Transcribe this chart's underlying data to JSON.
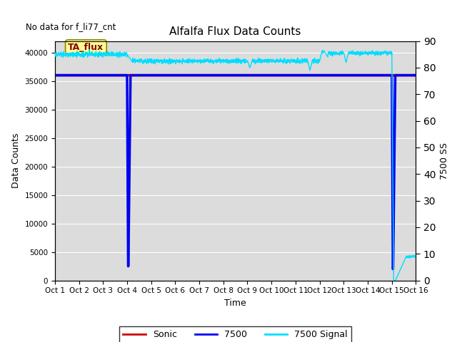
{
  "title": "Alfalfa Flux Data Counts",
  "no_data_text": "No data for f_li77_cnt",
  "xlabel": "Time",
  "ylabel_left": "Data Counts",
  "ylabel_right": "7500 SS",
  "bg_color": "#dcdcdc",
  "xtick_labels": [
    "Oct 1",
    "Oct 2",
    "Oct 3",
    "Oct 4",
    "Oct 5",
    "Oct 6",
    "Oct 7",
    "Oct 8",
    "Oct 9",
    "Oct 10",
    "Oct 11",
    "Oct 12",
    "Oct 13",
    "Oct 14",
    "Oct 15",
    "Oct 16"
  ],
  "ylim_left": [
    0,
    42000
  ],
  "ylim_right": [
    0,
    90
  ],
  "yticks_left": [
    0,
    5000,
    10000,
    15000,
    20000,
    25000,
    30000,
    35000,
    40000
  ],
  "yticks_right": [
    0,
    10,
    20,
    30,
    40,
    50,
    60,
    70,
    80,
    90
  ],
  "sonic_color": "#cc0000",
  "line7500_color": "#0000ee",
  "signal_color": "#00ddff",
  "legend_label_sonic": "Sonic",
  "legend_label_7500": "7500",
  "legend_label_signal": "7500 Signal",
  "annotation_text": "TA_flux",
  "flat_level_7500": 36000,
  "flat_level_sonic": 36000,
  "signal_base": 84.5,
  "signal_after_oct4": 82.5
}
